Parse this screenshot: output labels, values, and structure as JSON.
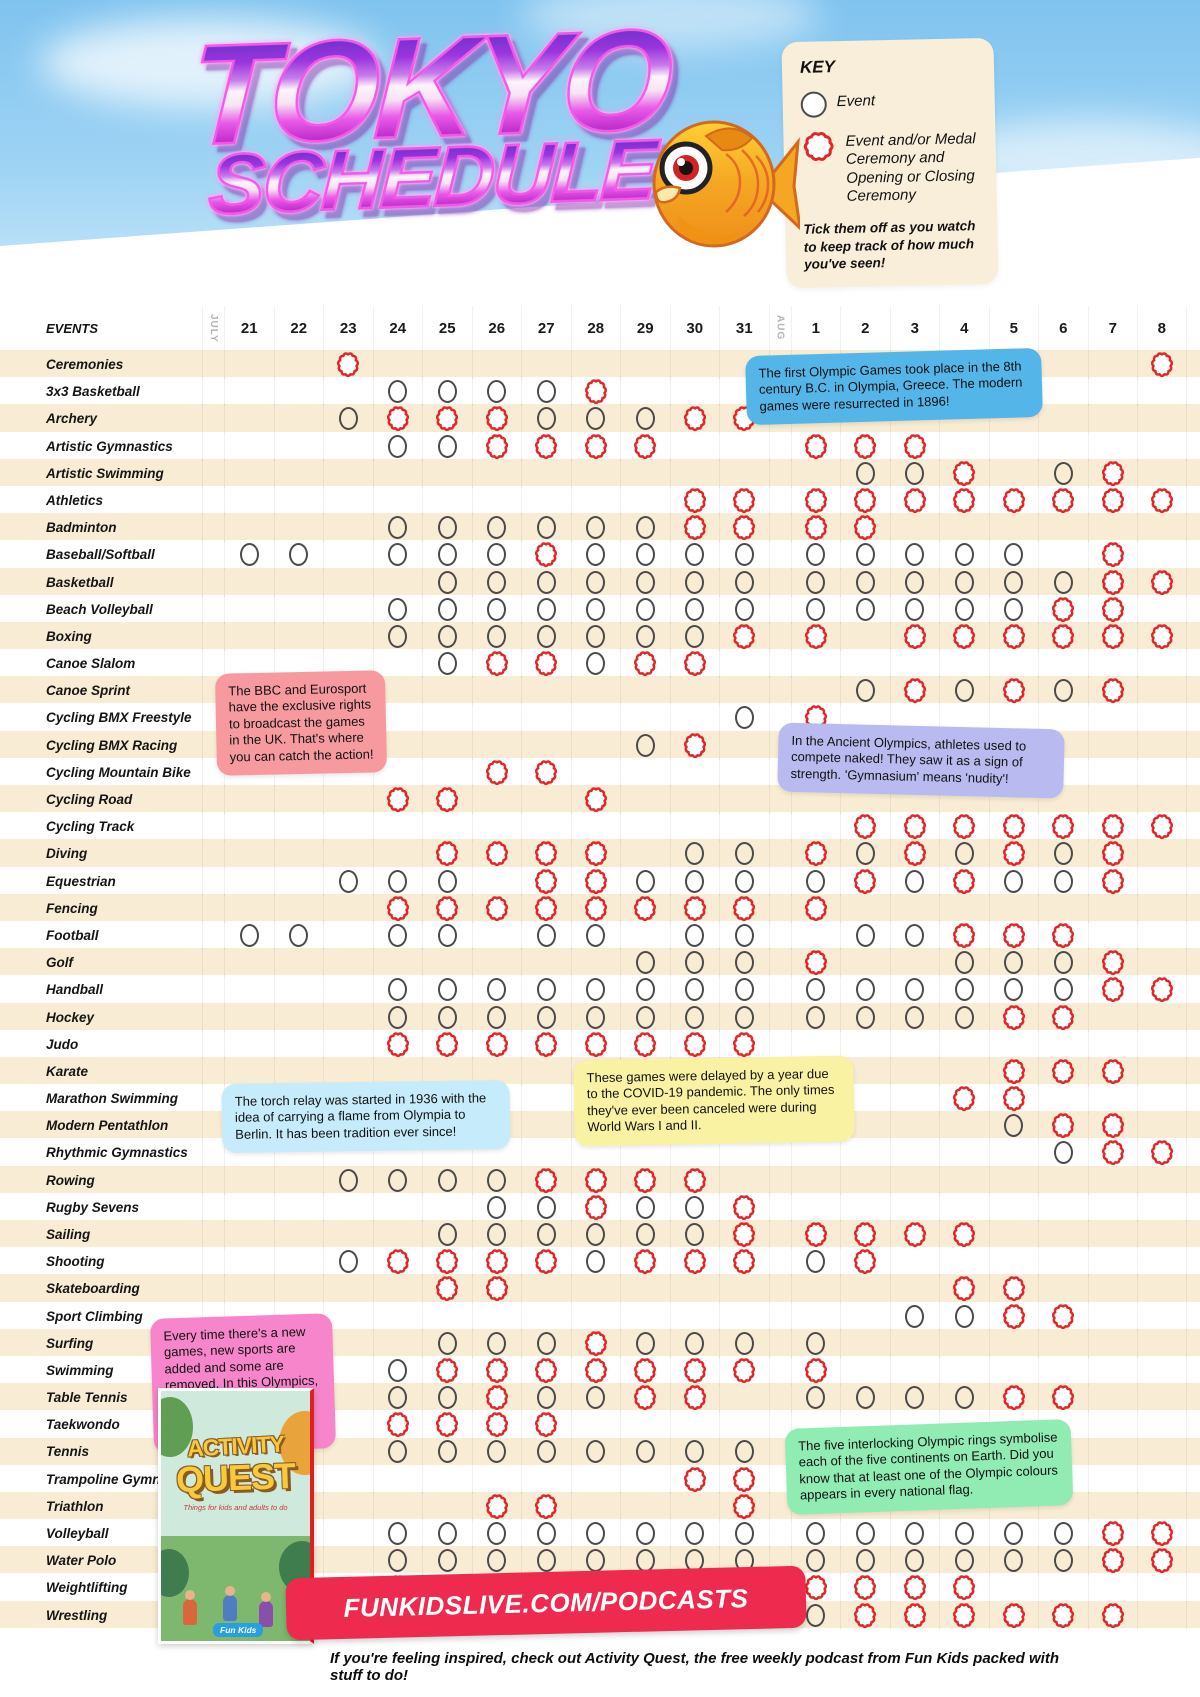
{
  "title": {
    "line1": "TOKYO",
    "line2": "SCHEDULE"
  },
  "key": {
    "heading": "KEY",
    "event_label": "Event",
    "medal_label": "Event and/or Medal Ceremony and Opening or Closing Ceremony",
    "tip": "Tick them off as you watch to keep track of how much you've seen!"
  },
  "table": {
    "events_header": "EVENTS",
    "month_july": "JULY",
    "month_aug": "AUG",
    "july_days": [
      "21",
      "22",
      "23",
      "24",
      "25",
      "26",
      "27",
      "28",
      "29",
      "30",
      "31"
    ],
    "aug_days": [
      "1",
      "2",
      "3",
      "4",
      "5",
      "6",
      "7",
      "8"
    ],
    "mark_legend": {
      "O": "event",
      "R": "event and/or medal ceremony"
    },
    "rows": [
      {
        "label": "Ceremonies",
        "marks": "..R...............R"
      },
      {
        "label": "3x3 Basketball",
        "marks": "...OOOOR..........."
      },
      {
        "label": "Archery",
        "marks": "..ORRROOORR........"
      },
      {
        "label": "Artistic Gymnastics",
        "marks": "...OORRRR..RRR....."
      },
      {
        "label": "Artistic Swimming",
        "marks": "............OOR.OR."
      },
      {
        "label": "Athletics",
        "marks": ".........RRRRRRRRRR"
      },
      {
        "label": "Badminton",
        "marks": "...OOOOOORRRR......"
      },
      {
        "label": "Baseball/Softball",
        "marks": "OO.OOOROOOOOOOOO.R."
      },
      {
        "label": "Basketball",
        "marks": "....OOOOOOOOOOOOORR"
      },
      {
        "label": "Beach Volleyball",
        "marks": "...OOOOOOOOOOOOORR."
      },
      {
        "label": "Boxing",
        "marks": "...OOOOOOORR.RRRRRR"
      },
      {
        "label": "Canoe Slalom",
        "marks": "....ORRORR........."
      },
      {
        "label": "Canoe Sprint",
        "marks": "............OROROR."
      },
      {
        "label": "Cycling BMX Freestyle",
        "marks": "..........OR......."
      },
      {
        "label": "Cycling BMX Racing",
        "marks": "........OR........."
      },
      {
        "label": "Cycling Mountain Bike",
        "marks": ".....RR............"
      },
      {
        "label": "Cycling Road",
        "marks": "...RR..R..........."
      },
      {
        "label": "Cycling Track",
        "marks": "............RRRRRRR"
      },
      {
        "label": "Diving",
        "marks": "....RRRR.OOROROROR."
      },
      {
        "label": "Equestrian",
        "marks": "..OOO.RROOOOROROOR."
      },
      {
        "label": "Fencing",
        "marks": "...RRRRRRRRR......."
      },
      {
        "label": "Football",
        "marks": "OO.OO.OO.OO.OORRR.."
      },
      {
        "label": "Golf",
        "marks": "........OOOR..OOOR."
      },
      {
        "label": "Handball",
        "marks": "...OOOOOOOOOOOOOORR"
      },
      {
        "label": "Hockey",
        "marks": "...OOOOOOOOOOOORR.."
      },
      {
        "label": "Judo",
        "marks": "...RRRRRRRR........"
      },
      {
        "label": "Karate",
        "marks": "...............RRR."
      },
      {
        "label": "Marathon Swimming",
        "marks": "..............RR..."
      },
      {
        "label": "Modern Pentathlon",
        "marks": "...............ORR."
      },
      {
        "label": "Rhythmic Gymnastics",
        "marks": "................ORR"
      },
      {
        "label": "Rowing",
        "marks": "..OOOORRRR........."
      },
      {
        "label": "Rugby Sevens",
        "marks": ".....OOROOR........"
      },
      {
        "label": "Sailing",
        "marks": "....OOOOOORRRRR...."
      },
      {
        "label": "Shooting",
        "marks": "..ORRRRORRROR......"
      },
      {
        "label": "Skateboarding",
        "marks": "....RR........RR..."
      },
      {
        "label": "Sport Climbing",
        "marks": ".............OORR.."
      },
      {
        "label": "Surfing",
        "marks": "....OOOROOOO......."
      },
      {
        "label": "Swimming",
        "marks": "...ORRRRRRRR......."
      },
      {
        "label": "Table Tennis",
        "marks": "...OOROORR.OOOORR.."
      },
      {
        "label": "Taekwondo",
        "marks": "...RRRR............"
      },
      {
        "label": "Tennis",
        "marks": "...OOOOOOOOO......."
      },
      {
        "label": "Trampoline Gymnastics",
        "marks": ".........RR........"
      },
      {
        "label": "Triathlon",
        "marks": ".....RR...R........"
      },
      {
        "label": "Volleyball",
        "marks": "...OOOOOOOOOOOOOORR"
      },
      {
        "label": "Water Polo",
        "marks": "...OOOOOOOOOOOOOORR"
      },
      {
        "label": "Weightlifting",
        "marks": "...RRRRR..RRRRR...."
      },
      {
        "label": "Wrestling",
        "marks": "...........ORRRRRR."
      }
    ]
  },
  "fact_boxes": [
    {
      "id": "first-games",
      "text": "The first Olympic Games took place in the 8th century B.C. in Olympia, Greece. The modern games were resurrected in 1896!",
      "color": "#54b5e8"
    },
    {
      "id": "bbc",
      "text": "The BBC and Eurosport have the exclusive rights to broadcast the games in the UK. That's where you can catch the action!",
      "color": "#f79aa0"
    },
    {
      "id": "ancient",
      "text": "In the Ancient Olympics, athletes used to compete naked! They saw it as a sign of strength.  'Gymnasium' means 'nudity'!",
      "color": "#b9bbf0"
    },
    {
      "id": "torch",
      "text": "The torch relay was started in 1936 with the idea of carrying a flame from Olympia to Berlin. It has been tradition ever since!",
      "color": "#c6ebfa"
    },
    {
      "id": "covid",
      "text": "These games were delayed by a year due to the COVID-19 pandemic. The only times they've ever been canceled were during World Wars I and II.",
      "color": "#f9f2a2"
    },
    {
      "id": "new-sports",
      "text": "Every time there's a new games, new sports are added and some are removed. In this Olympics, 3x3 Basketball and new BMX sports have been added!",
      "color": "#f785cb"
    },
    {
      "id": "rings",
      "text": "The five interlocking Olympic rings symbolise each of the five continents on Earth. Did you know that at least one of the Olympic colours appears in every national flag.",
      "color": "#90ecb3"
    }
  ],
  "footer": {
    "banner": "FUNKIDSLIVE.COM/PODCASTS",
    "caption": "If you're feeling inspired, check out Activity Quest, the free weekly podcast from Fun Kids packed with stuff to do!",
    "activity_quest": {
      "line1": "ACTIVITY",
      "line2": "QUEST",
      "subtitle": "Things for kids and adults to do",
      "brand": "Fun Kids"
    }
  },
  "colors": {
    "event_circle": "#4a4a4a",
    "medal_circle": "#e12727",
    "row_stripe": "#f9ecd4",
    "banner_red": "#ee2a4e",
    "key_bg": "#f9eed9",
    "sky": "#7fc3ef"
  }
}
